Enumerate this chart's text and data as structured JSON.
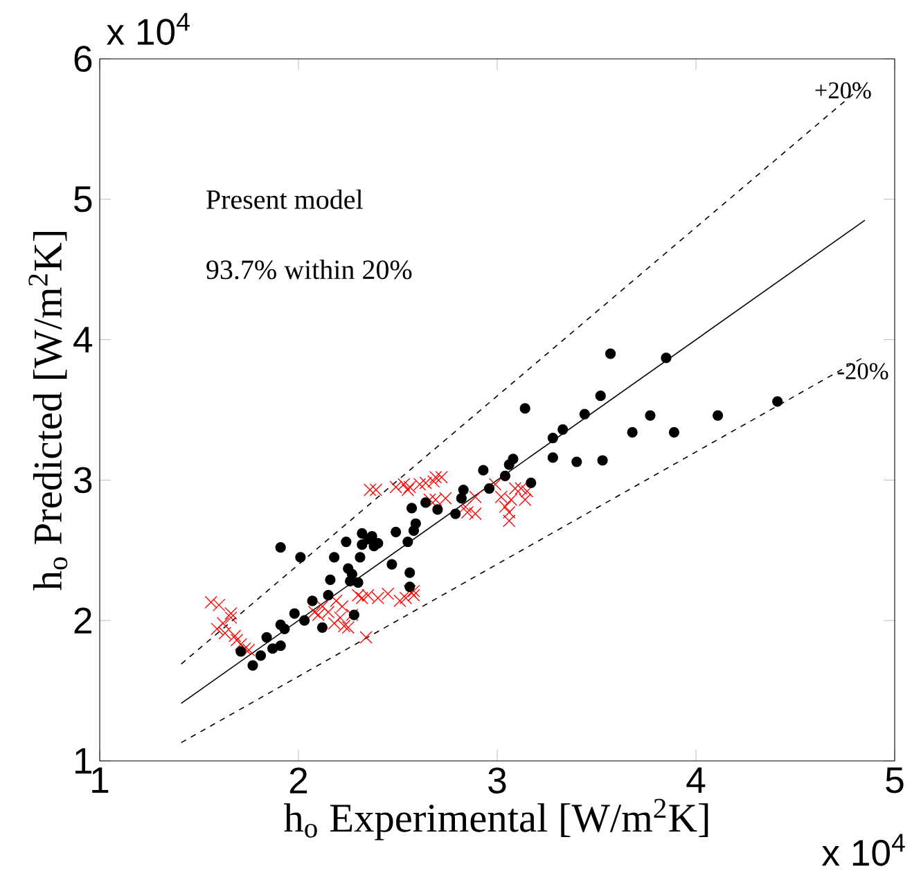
{
  "chart_data": {
    "type": "scatter",
    "xlabel": "h$_{o}$ Experimental [W/m$^{2}$K]",
    "ylabel": "h$_{o}$ Predicted [W/m$^{2}$K]",
    "xlim": [
      1,
      5
    ],
    "ylim": [
      1,
      6
    ],
    "xticks": [
      1,
      2,
      3,
      4,
      5
    ],
    "yticks": [
      1,
      2,
      3,
      4,
      5,
      6
    ],
    "annotations": [
      "Present model",
      "93.7% within 20%",
      "x 10$^{4}$",
      "x 10$^{4}$",
      "+20%",
      "-20%"
    ],
    "series": [
      {
        "type": "line",
        "color": "#000000",
        "marker": "none",
        "line_style": "solid",
        "x": [
          1.41,
          4.85
        ],
        "values": [
          1.41,
          4.85
        ]
      },
      {
        "type": "line",
        "color": "#000000",
        "marker": "none",
        "line_style": "dashed",
        "x": [
          1.41,
          4.85
        ],
        "values": [
          1.69,
          5.82
        ]
      },
      {
        "type": "line",
        "color": "#000000",
        "marker": "none",
        "line_style": "dashed",
        "x": [
          1.41,
          4.85
        ],
        "values": [
          1.13,
          3.88
        ]
      },
      {
        "color": "#ff0000",
        "marker": "cross",
        "x": [
          1.56,
          1.6,
          1.59,
          1.62,
          1.66,
          1.63,
          1.66,
          1.68,
          1.69,
          1.71,
          1.73,
          1.75,
          2.08,
          2.1,
          2.12,
          2.15,
          2.18,
          2.19,
          2.21,
          2.22,
          2.23,
          2.25,
          2.27,
          2.3,
          2.32,
          2.35,
          2.4,
          2.45,
          2.34,
          2.51,
          2.54,
          2.56,
          2.58,
          2.58,
          2.36,
          2.39,
          2.49,
          2.53,
          2.55,
          2.56,
          2.61,
          2.64,
          2.68,
          2.69,
          2.72,
          2.69,
          2.74,
          2.66,
          2.84,
          2.89,
          2.89,
          2.85,
          3.02,
          3.04,
          3.06,
          3.06,
          3.07,
          3.09,
          3.12,
          3.14,
          3.15,
          2.99
        ],
        "values": [
          2.13,
          2.11,
          1.94,
          1.98,
          2.05,
          1.91,
          2.02,
          1.89,
          1.86,
          1.83,
          1.8,
          1.79,
          2.06,
          2.04,
          2.1,
          2.06,
          1.98,
          2.14,
          2.02,
          2.1,
          1.96,
          1.95,
          2.04,
          2.18,
          2.16,
          2.18,
          2.16,
          2.19,
          1.88,
          2.14,
          2.16,
          2.21,
          2.18,
          2.21,
          2.93,
          2.93,
          2.95,
          2.97,
          2.93,
          2.95,
          2.97,
          2.98,
          2.99,
          3.02,
          3.02,
          2.86,
          2.87,
          2.86,
          2.81,
          2.76,
          2.88,
          2.77,
          2.88,
          2.81,
          2.71,
          2.77,
          2.86,
          2.94,
          2.94,
          2.86,
          2.92,
          2.97
        ]
      },
      {
        "color": "#000000",
        "marker": "circle",
        "x": [
          1.71,
          1.77,
          1.81,
          1.84,
          1.87,
          1.91,
          1.91,
          1.93,
          1.91,
          1.98,
          2.01,
          2.03,
          2.07,
          2.12,
          2.15,
          2.16,
          2.18,
          2.24,
          2.25,
          2.26,
          2.27,
          2.28,
          2.3,
          2.32,
          2.31,
          2.32,
          2.35,
          2.37,
          2.38,
          2.4,
          2.49,
          2.47,
          2.55,
          2.56,
          2.56,
          2.57,
          2.58,
          2.59,
          2.64,
          2.7,
          2.79,
          2.82,
          2.83,
          2.93,
          2.96,
          3.04,
          3.06,
          3.08,
          3.14,
          3.17,
          3.28,
          3.28,
          3.33,
          3.4,
          3.44,
          3.52,
          3.53,
          3.57,
          3.68,
          3.77,
          3.85,
          3.89,
          4.11,
          4.41
        ],
        "values": [
          1.78,
          1.68,
          1.75,
          1.88,
          1.8,
          1.82,
          1.97,
          1.94,
          2.52,
          2.05,
          2.45,
          2.0,
          2.14,
          1.95,
          2.18,
          2.29,
          2.45,
          2.56,
          2.37,
          2.28,
          2.33,
          2.04,
          2.27,
          2.62,
          2.45,
          2.54,
          2.58,
          2.6,
          2.53,
          2.55,
          2.63,
          2.4,
          2.56,
          2.34,
          2.24,
          2.8,
          2.64,
          2.69,
          2.84,
          2.79,
          2.76,
          2.87,
          2.93,
          3.07,
          2.94,
          3.03,
          3.11,
          3.15,
          3.51,
          2.98,
          3.3,
          3.16,
          3.36,
          3.13,
          3.47,
          3.6,
          3.14,
          3.9,
          3.34,
          3.46,
          3.87,
          3.34,
          3.46,
          3.56
        ]
      }
    ]
  }
}
